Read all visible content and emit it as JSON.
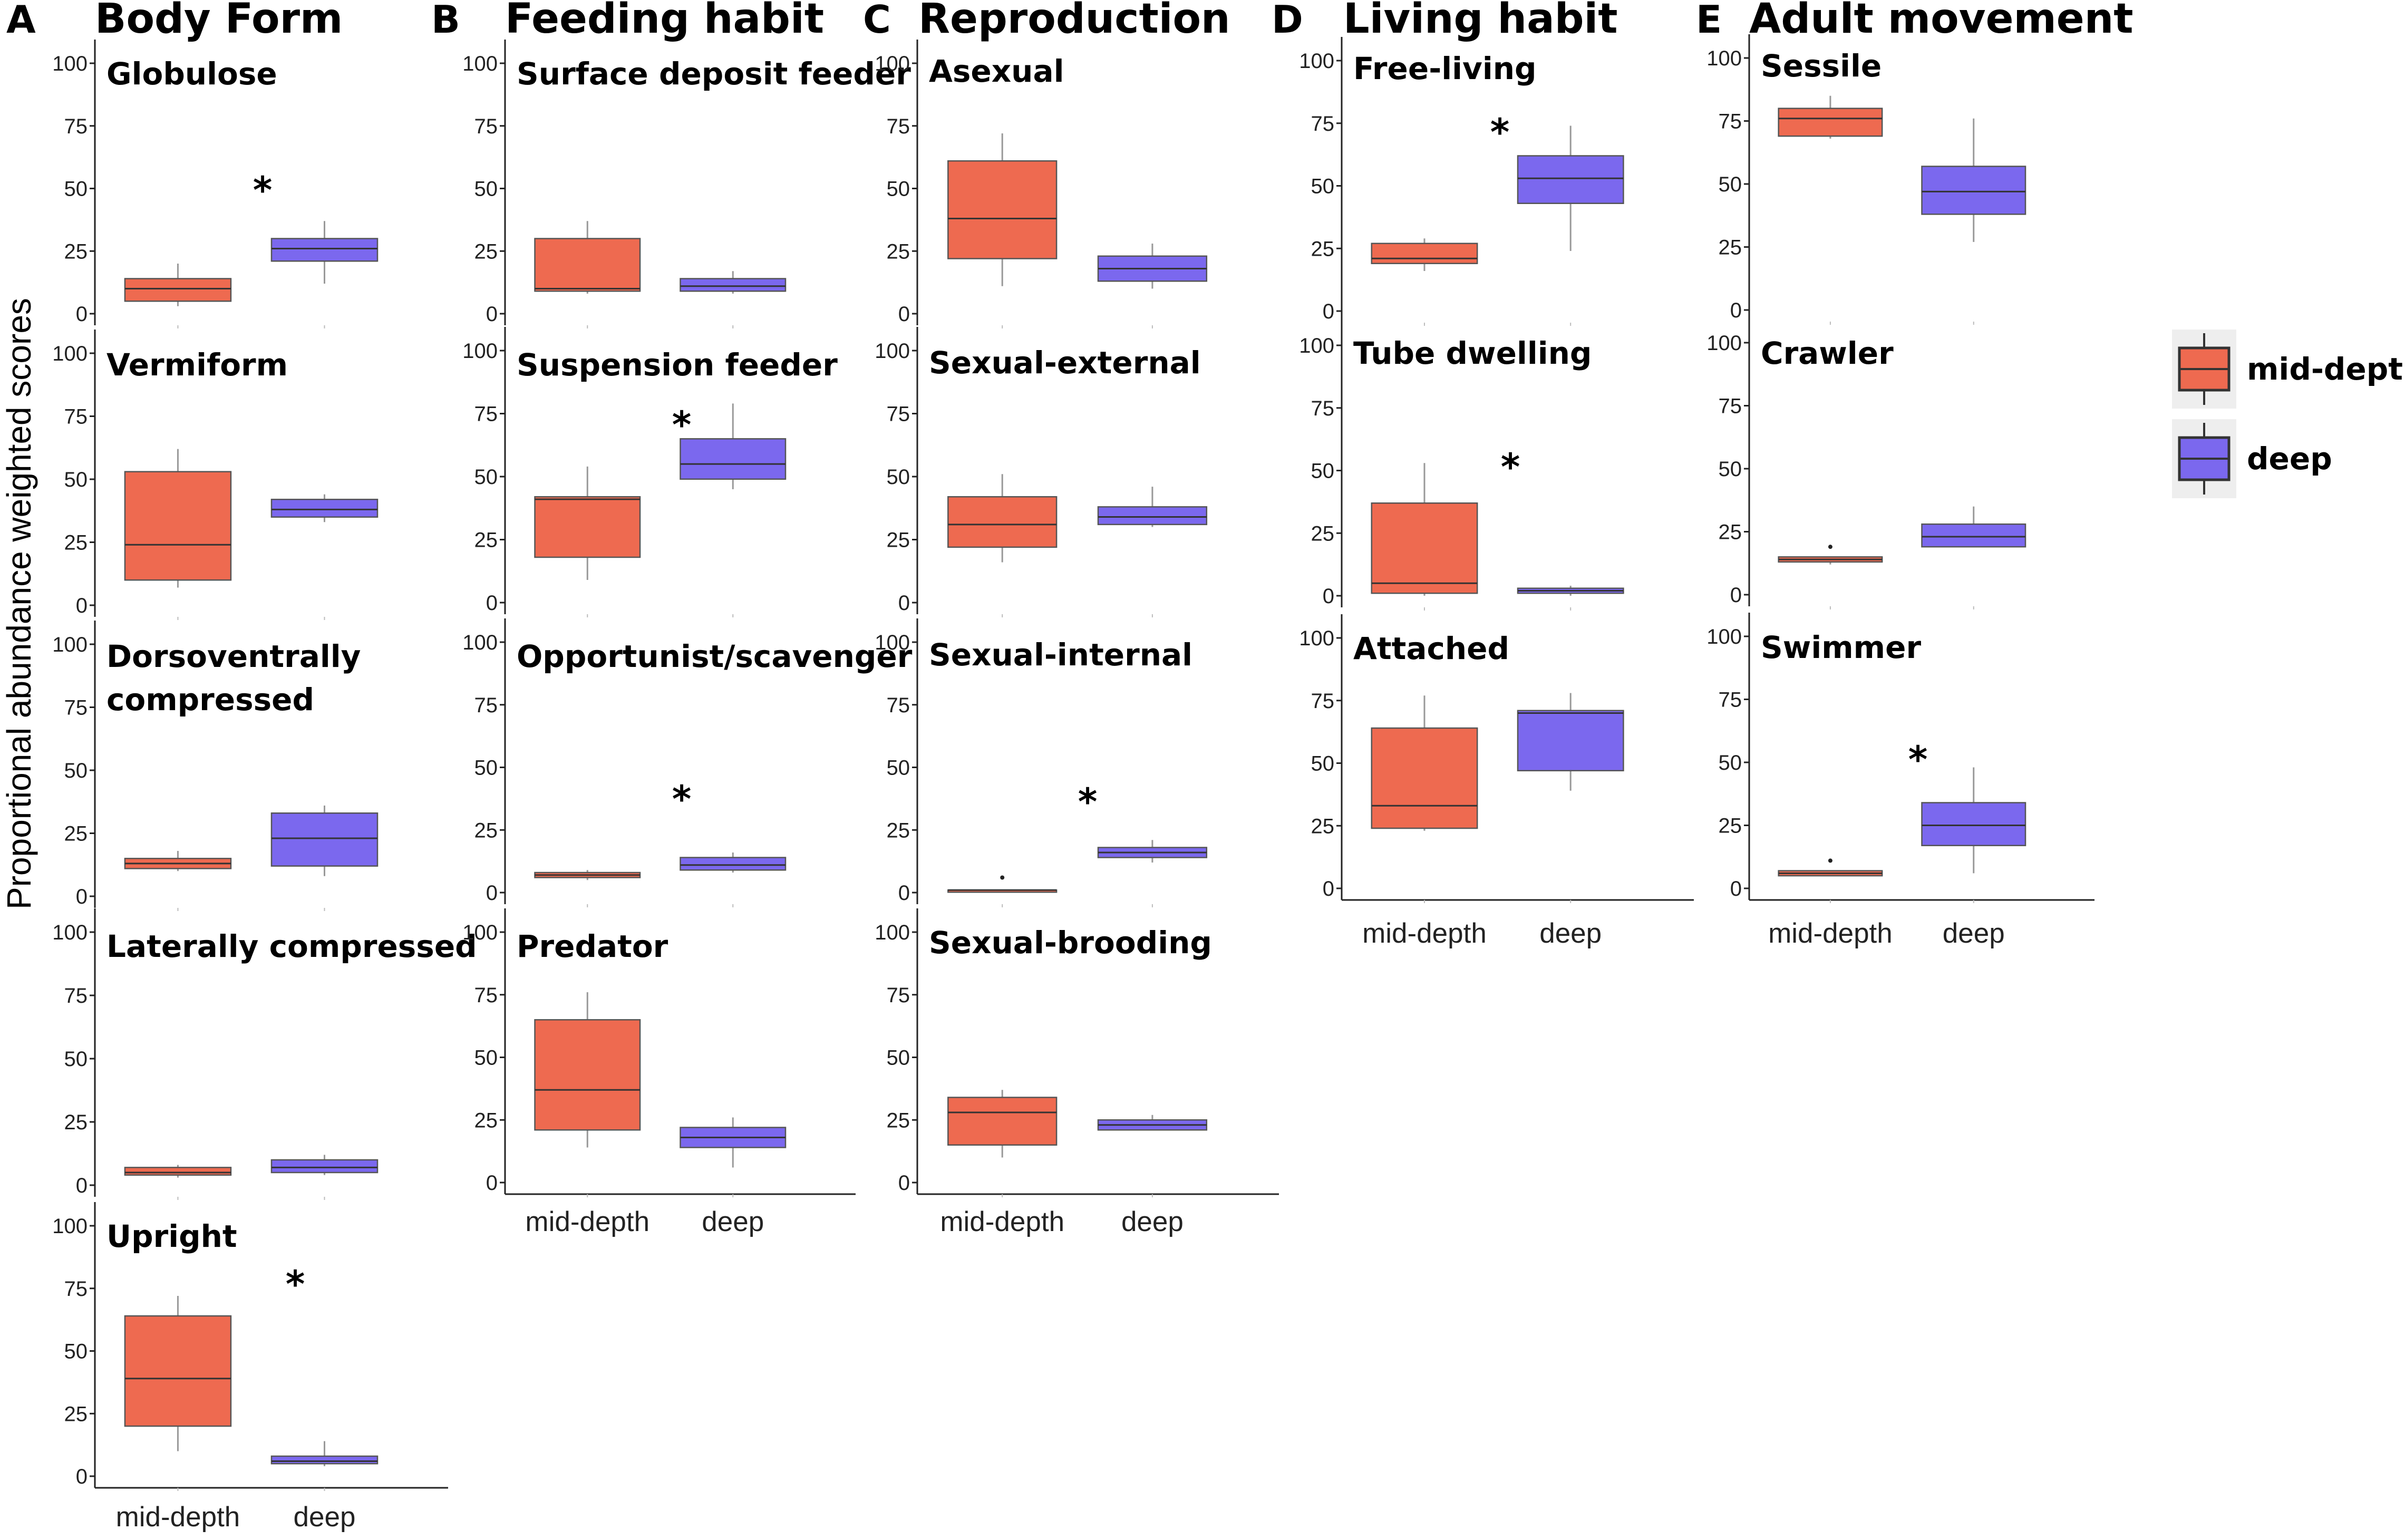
{
  "chart_data": {
    "type": "boxplot",
    "ylabel": "Proportional abundance weighted scores",
    "categories": [
      "mid-depth",
      "deep"
    ],
    "ylim": [
      0,
      100
    ],
    "yticks": [
      0,
      25,
      50,
      75,
      100
    ],
    "legend": {
      "placement": "right",
      "entries": [
        {
          "name": "mid-depth",
          "color": "#EE6A50"
        },
        {
          "name": "deep",
          "color": "#7B68EE"
        }
      ]
    },
    "colors": {
      "mid": "#EE6A50",
      "deep": "#7B68EE",
      "axis": "#222222",
      "whisker": "#999999"
    },
    "columns": [
      {
        "letter": "A",
        "title": "Body Form",
        "panels": [
          {
            "title": [
              "Globulose"
            ],
            "significant": true,
            "mid": {
              "min": 3,
              "q1": 5,
              "median": 10,
              "q3": 14,
              "max": 20
            },
            "deep": {
              "min": 12,
              "q1": 21,
              "median": 26,
              "q3": 30,
              "max": 37
            }
          },
          {
            "title": [
              "Vermiform"
            ],
            "significant": false,
            "mid": {
              "min": 7,
              "q1": 10,
              "median": 24,
              "q3": 53,
              "max": 62
            },
            "deep": {
              "min": 33,
              "q1": 35,
              "median": 38,
              "q3": 42,
              "max": 44
            }
          },
          {
            "title": [
              "Dorsoventrally",
              "compressed"
            ],
            "significant": false,
            "mid": {
              "min": 10,
              "q1": 11,
              "median": 13,
              "q3": 15,
              "max": 18
            },
            "deep": {
              "min": 8,
              "q1": 12,
              "median": 23,
              "q3": 33,
              "max": 36
            }
          },
          {
            "title": [
              "Laterally compressed"
            ],
            "significant": false,
            "mid": {
              "min": 3,
              "q1": 4,
              "median": 5,
              "q3": 7,
              "max": 8
            },
            "deep": {
              "min": 4,
              "q1": 5,
              "median": 7,
              "q3": 10,
              "max": 12
            }
          },
          {
            "title": [
              "Upright"
            ],
            "significant": true,
            "mid": {
              "min": 10,
              "q1": 20,
              "median": 39,
              "q3": 64,
              "max": 72
            },
            "deep": {
              "min": 4,
              "q1": 5,
              "median": 6,
              "q3": 8,
              "max": 14
            }
          }
        ]
      },
      {
        "letter": "B",
        "title": "Feeding habit",
        "panels": [
          {
            "title": [
              "Surface deposit feeder"
            ],
            "significant": false,
            "mid": {
              "min": 8,
              "q1": 9,
              "median": 10,
              "q3": 30,
              "max": 37
            },
            "deep": {
              "min": 8,
              "q1": 9,
              "median": 11,
              "q3": 14,
              "max": 17
            }
          },
          {
            "title": [
              "Suspension feeder"
            ],
            "significant": true,
            "mid": {
              "min": 9,
              "q1": 18,
              "median": 41,
              "q3": 42,
              "max": 54
            },
            "deep": {
              "min": 45,
              "q1": 49,
              "median": 55,
              "q3": 65,
              "max": 79
            }
          },
          {
            "title": [
              "Opportunist/scavenger"
            ],
            "significant": true,
            "mid": {
              "min": 5,
              "q1": 6,
              "median": 7,
              "q3": 8,
              "max": 9
            },
            "deep": {
              "min": 8,
              "q1": 9,
              "median": 11,
              "q3": 14,
              "max": 16
            }
          },
          {
            "title": [
              "Predator"
            ],
            "significant": false,
            "mid": {
              "min": 14,
              "q1": 21,
              "median": 37,
              "q3": 65,
              "max": 76
            },
            "deep": {
              "min": 6,
              "q1": 14,
              "median": 18,
              "q3": 22,
              "max": 26
            }
          }
        ]
      },
      {
        "letter": "C",
        "title": "Reproduction",
        "panels": [
          {
            "title": [
              "Asexual"
            ],
            "significant": false,
            "mid": {
              "min": 11,
              "q1": 22,
              "median": 38,
              "q3": 61,
              "max": 72
            },
            "deep": {
              "min": 10,
              "q1": 13,
              "median": 18,
              "q3": 23,
              "max": 28
            }
          },
          {
            "title": [
              "Sexual-external"
            ],
            "significant": false,
            "mid": {
              "min": 16,
              "q1": 22,
              "median": 31,
              "q3": 42,
              "max": 51
            },
            "deep": {
              "min": 30,
              "q1": 31,
              "median": 34,
              "q3": 38,
              "max": 46
            }
          },
          {
            "title": [
              "Sexual-internal"
            ],
            "significant": true,
            "mid": {
              "min": 1,
              "q1": 1,
              "median": 1,
              "q3": 1,
              "max": 1,
              "outlier": 6
            },
            "deep": {
              "min": 12,
              "q1": 14,
              "median": 16,
              "q3": 18,
              "max": 21
            }
          },
          {
            "title": [
              "Sexual-brooding"
            ],
            "significant": false,
            "mid": {
              "min": 10,
              "q1": 15,
              "median": 28,
              "q3": 34,
              "max": 37
            },
            "deep": {
              "min": 21,
              "q1": 21,
              "median": 23,
              "q3": 25,
              "max": 27
            }
          }
        ]
      },
      {
        "letter": "D",
        "title": "Living habit",
        "panels": [
          {
            "title": [
              "Free-living"
            ],
            "significant": true,
            "mid": {
              "min": 16,
              "q1": 19,
              "median": 21,
              "q3": 27,
              "max": 29
            },
            "deep": {
              "min": 24,
              "q1": 43,
              "median": 53,
              "q3": 62,
              "max": 74
            }
          },
          {
            "title": [
              "Tube dwelling"
            ],
            "significant": true,
            "mid": {
              "min": 0,
              "q1": 1,
              "median": 5,
              "q3": 37,
              "max": 53
            },
            "deep": {
              "min": 0,
              "q1": 1,
              "median": 2,
              "q3": 3,
              "max": 4
            }
          },
          {
            "title": [
              "Attached"
            ],
            "significant": false,
            "mid": {
              "min": 23,
              "q1": 24,
              "median": 33,
              "q3": 64,
              "max": 77
            },
            "deep": {
              "min": 39,
              "q1": 47,
              "median": 70,
              "q3": 71,
              "max": 78
            }
          }
        ]
      },
      {
        "letter": "E",
        "title": "Adult movement",
        "panels": [
          {
            "title": [
              "Sessile"
            ],
            "significant": false,
            "mid": {
              "min": 68,
              "q1": 69,
              "median": 76,
              "q3": 80,
              "max": 85
            },
            "deep": {
              "min": 27,
              "q1": 38,
              "median": 47,
              "q3": 57,
              "max": 76
            }
          },
          {
            "title": [
              "Crawler"
            ],
            "significant": false,
            "mid": {
              "min": 12,
              "q1": 13,
              "median": 14,
              "q3": 15,
              "max": 15,
              "outlier": 19
            },
            "deep": {
              "min": 19,
              "q1": 19,
              "median": 23,
              "q3": 28,
              "max": 35
            }
          },
          {
            "title": [
              "Swimmer"
            ],
            "significant": true,
            "mid": {
              "min": 5,
              "q1": 5,
              "median": 6,
              "q3": 7,
              "max": 7,
              "outlier": 11
            },
            "deep": {
              "min": 6,
              "q1": 17,
              "median": 25,
              "q3": 34,
              "max": 48
            }
          }
        ]
      }
    ],
    "significance_marker": "*"
  }
}
